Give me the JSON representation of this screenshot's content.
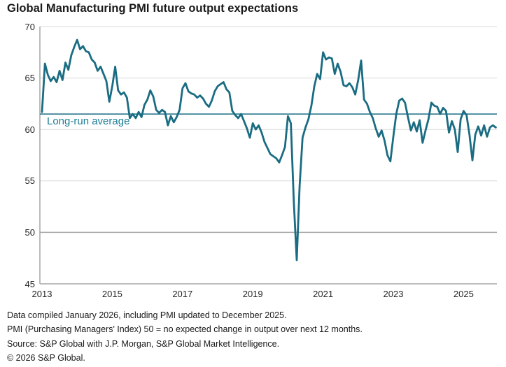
{
  "title": "Global Manufacturing PMI future output expectations",
  "chart_data": {
    "type": "line",
    "title": "Global Manufacturing PMI future output expectations",
    "x_start": "2013-01",
    "x_end": "2025-12",
    "x_frequency": "monthly",
    "x_ticks": [
      "2013",
      "2015",
      "2017",
      "2019",
      "2021",
      "2023",
      "2025"
    ],
    "y_ticks": [
      "70",
      "65",
      "60",
      "55",
      "50",
      "45"
    ],
    "ylim": [
      45,
      70
    ],
    "grid": "horizontal",
    "legend_position": "none",
    "long_run_average": 61.5,
    "avg_label": "Long-run average",
    "series": [
      {
        "name": "Global Manufacturing PMI future output expectations index",
        "values": [
          61.7,
          66.4,
          65.3,
          64.7,
          65.1,
          64.6,
          65.7,
          64.8,
          66.5,
          65.8,
          67.2,
          68.0,
          68.7,
          67.8,
          68.1,
          67.6,
          67.5,
          66.8,
          66.5,
          65.7,
          66.1,
          65.4,
          64.7,
          62.7,
          64.2,
          66.1,
          63.8,
          63.4,
          63.6,
          63.1,
          61.1,
          61.5,
          61.1,
          61.7,
          61.2,
          62.4,
          62.9,
          63.8,
          63.2,
          61.9,
          61.6,
          61.9,
          61.7,
          60.4,
          61.3,
          60.7,
          61.2,
          61.9,
          64.0,
          64.5,
          63.7,
          63.5,
          63.4,
          63.1,
          63.3,
          63.0,
          62.5,
          62.2,
          62.8,
          63.7,
          64.2,
          64.4,
          64.6,
          63.9,
          63.6,
          61.8,
          61.4,
          61.1,
          61.5,
          60.8,
          60.1,
          59.2,
          60.6,
          60.0,
          60.4,
          59.7,
          58.8,
          58.2,
          57.6,
          57.4,
          57.2,
          56.8,
          57.5,
          58.3,
          61.3,
          60.6,
          53.0,
          47.3,
          54.5,
          59.2,
          60.2,
          61.0,
          62.3,
          64.2,
          65.4,
          64.9,
          67.5,
          66.8,
          67.0,
          66.9,
          65.4,
          66.4,
          65.6,
          64.3,
          64.2,
          64.5,
          64.1,
          63.4,
          64.8,
          66.7,
          62.9,
          62.5,
          61.7,
          61.1,
          60.1,
          59.3,
          59.9,
          58.9,
          57.5,
          56.9,
          59.3,
          61.5,
          62.8,
          63.0,
          62.6,
          61.2,
          59.9,
          60.7,
          59.8,
          60.9,
          58.7,
          59.9,
          61.0,
          62.6,
          62.3,
          62.2,
          61.5,
          62.1,
          61.8,
          59.7,
          60.8,
          60.0,
          57.8,
          61.0,
          61.8,
          61.4,
          59.5,
          57.0,
          59.5,
          60.3,
          59.4,
          60.4,
          59.3,
          60.2,
          60.4,
          60.2
        ]
      }
    ],
    "colors": {
      "series_line": "#1a6c82",
      "average_line": "#1a6c82",
      "average_label": "#1b7d96",
      "gridline": "#d9d9d9",
      "axis": "#a6a6a6",
      "title_text": "#1a1a1a",
      "tick_text": "#262626"
    }
  },
  "footnotes": [
    "Data compiled January 2026, including PMI updated to December 2025.",
    "PMI (Purchasing Managers' Index) 50 = no expected change in output over next 12 months.",
    "Source: S&P Global with J.P. Morgan, S&P Global Market Intelligence.",
    "© 2026 S&P Global."
  ]
}
